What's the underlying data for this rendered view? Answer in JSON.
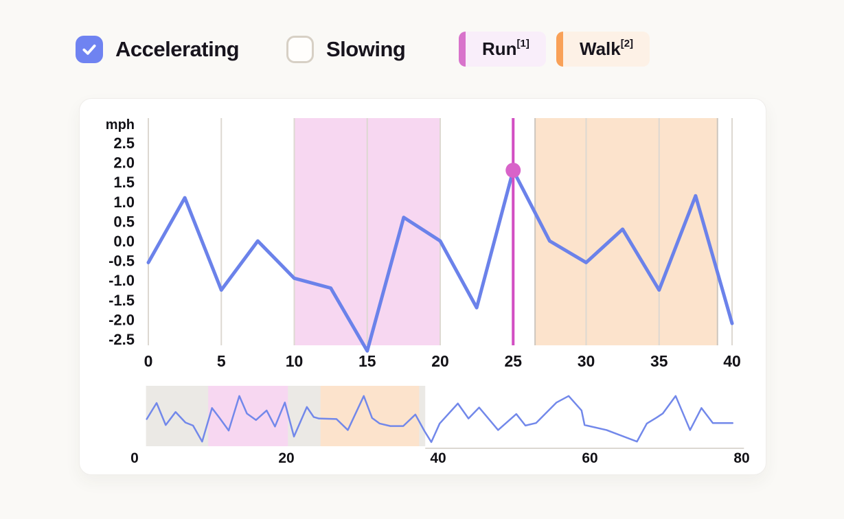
{
  "controls": {
    "accelerating": {
      "label": "Accelerating",
      "checked": true,
      "accent_color": "#6f83f1"
    },
    "slowing": {
      "label": "Slowing",
      "checked": false,
      "border_color": "#d7d0c5"
    }
  },
  "legend": {
    "run": {
      "label": "Run",
      "superscript": "[1]",
      "bar_color": "#d873cb",
      "bg_color": "#f9eefa"
    },
    "walk": {
      "label": "Walk",
      "superscript": "[2]",
      "bar_color": "#f9a158",
      "bg_color": "#fdf1e6"
    }
  },
  "chart_data": [
    {
      "type": "line",
      "name": "speed-detail",
      "ylabel": "mph",
      "x": [
        0,
        2.5,
        5,
        7.5,
        10,
        12.5,
        15,
        17.5,
        20,
        22.5,
        25,
        27.5,
        30,
        32.5,
        35,
        37.5,
        40
      ],
      "values": [
        -0.55,
        1.1,
        -1.25,
        0.0,
        -0.95,
        -1.2,
        -2.8,
        0.6,
        0.0,
        -1.7,
        1.8,
        0.0,
        -0.55,
        0.3,
        -1.25,
        1.15,
        -2.1
      ],
      "xlim": [
        0,
        40
      ],
      "ylim": [
        -2.7,
        3.1
      ],
      "xticks": [
        "0",
        "5",
        "10",
        "15",
        "20",
        "25",
        "30",
        "35",
        "40"
      ],
      "yticks": [
        "2.5",
        "2.0",
        "1.5",
        "1.0",
        "0.5",
        "0.0",
        "-0.5",
        "-1.0",
        "-1.5",
        "-2.0",
        "-2.5"
      ],
      "grid": true,
      "line_color": "#6b82ea",
      "grid_color": "#ddd8d1",
      "regions": [
        {
          "name": "Run",
          "x0": 10,
          "x1": 20,
          "color": "#f7d7f1",
          "edge_color": "#cdc6be"
        },
        {
          "name": "Walk",
          "x0": 26.5,
          "x1": 39,
          "color": "#fce3cc",
          "edge_color": "#cdc6be"
        }
      ],
      "cursor": {
        "x": 25,
        "y": 1.8,
        "color": "#d24fc3",
        "dot_color": "#d863c9"
      }
    },
    {
      "type": "line",
      "name": "speed-overview",
      "x": [
        1.6,
        2.9,
        4.1,
        5.4,
        6.7,
        7.7,
        8.9,
        10.2,
        11.2,
        12.4,
        13.8,
        14.8,
        16.0,
        17.4,
        18.5,
        19.8,
        21.0,
        22.7,
        23.6,
        24.3,
        26.6,
        28.1,
        30.2,
        31.3,
        32.3,
        33.7,
        35.4,
        37.0,
        38.2,
        39.1,
        40.2,
        42.6,
        44.0,
        45.4,
        47.9,
        50.3,
        51.5,
        52.9,
        55.6,
        57.2,
        58.9,
        59.3,
        62.2,
        66.2,
        67.5,
        68.8,
        69.6,
        71.3,
        73.2,
        74.7,
        76.2,
        78.8
      ],
      "values": [
        -0.3,
        1.3,
        -0.9,
        0.4,
        -0.65,
        -0.95,
        -2.55,
        0.8,
        -0.2,
        -1.45,
        2.0,
        0.25,
        -0.4,
        0.55,
        -1.05,
        1.35,
        -2.05,
        0.9,
        -0.1,
        -0.25,
        -0.3,
        -1.4,
        2.0,
        -0.2,
        -0.75,
        -1.0,
        -1.0,
        0.15,
        -1.5,
        -2.6,
        -0.75,
        1.25,
        -0.25,
        0.85,
        -1.4,
        0.2,
        -0.95,
        -0.7,
        1.35,
        2.0,
        0.55,
        -0.9,
        -1.4,
        -2.55,
        -0.75,
        -0.15,
        0.25,
        2.0,
        -1.4,
        0.8,
        -0.7,
        -0.7
      ],
      "xlim": [
        0,
        80
      ],
      "ylim": [
        -3,
        3
      ],
      "xticks": [
        "0",
        "20",
        "40",
        "60",
        "80"
      ],
      "yticks": [],
      "grid": false,
      "line_color": "#7288ea",
      "axis_color": "#dcd8d2",
      "regions": [
        {
          "name": "window",
          "x0": 1.5,
          "x1": 38.3,
          "color": "#ebe9e5",
          "edge_color": "none"
        },
        {
          "name": "Run",
          "x0": 9.7,
          "x1": 20.2,
          "color": "#f7d7f1",
          "edge_color": "none"
        },
        {
          "name": "Walk",
          "x0": 24.5,
          "x1": 37.5,
          "color": "#fce3cc",
          "edge_color": "none"
        }
      ]
    }
  ]
}
